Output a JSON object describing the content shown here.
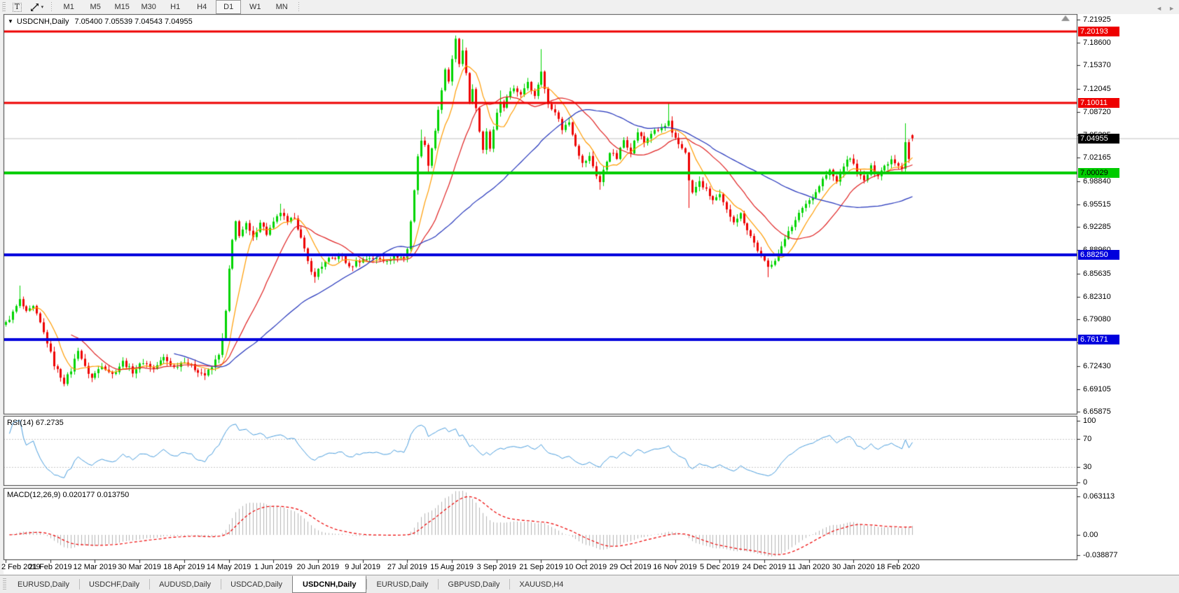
{
  "toolbar": {
    "text_tool_label": "T",
    "dropdown_caret": "▾",
    "timeframes": [
      "M1",
      "M5",
      "M15",
      "M30",
      "H1",
      "H4",
      "D1",
      "W1",
      "MN"
    ],
    "active_timeframe": "D1"
  },
  "chart_window": {
    "menu_arrow": "▼",
    "title": "USDCNH,Daily",
    "ohlc": "7.05400 7.05539 7.04543 7.04955"
  },
  "price_axis": {
    "ticks": [
      "7.21925",
      "7.18600",
      "7.15370",
      "7.12045",
      "7.08720",
      "7.05395",
      "7.02165",
      "6.98840",
      "6.95515",
      "6.92285",
      "6.88960",
      "6.85635",
      "6.82310",
      "6.79080",
      "6.75755",
      "6.72430",
      "6.69105",
      "6.65875"
    ],
    "badges": [
      {
        "label": "7.20193",
        "bg": "#ee0000",
        "fg": "#ffffff"
      },
      {
        "label": "7.10011",
        "bg": "#ee0000",
        "fg": "#ffffff"
      },
      {
        "label": "7.04955",
        "bg": "#000000",
        "fg": "#ffffff"
      },
      {
        "label": "7.00029",
        "bg": "#00cc00",
        "fg": "#000000"
      },
      {
        "label": "6.88250",
        "bg": "#0000dd",
        "fg": "#ffffff"
      },
      {
        "label": "6.76171",
        "bg": "#0000dd",
        "fg": "#ffffff"
      }
    ]
  },
  "rsi_panel": {
    "label": "RSI(14) 67.2735",
    "ticks": [
      "100",
      "70",
      "30",
      "0"
    ],
    "level_lines": [
      70,
      30
    ]
  },
  "macd_panel": {
    "label": "MACD(12,26,9) 0.020177 0.013750",
    "ticks": [
      "0.063113",
      "0.00",
      "-0.038877"
    ]
  },
  "date_axis": {
    "labels": [
      "2 Feb 2019",
      "21 Feb 2019",
      "12 Mar 2019",
      "30 Mar 2019",
      "18 Apr 2019",
      "14 May 2019",
      "1 Jun 2019",
      "20 Jun 2019",
      "9 Jul 2019",
      "27 Jul 2019",
      "15 Aug 2019",
      "3 Sep 2019",
      "21 Sep 2019",
      "10 Oct 2019",
      "29 Oct 2019",
      "16 Nov 2019",
      "5 Dec 2019",
      "24 Dec 2019",
      "11 Jan 2020",
      "30 Jan 2020",
      "18 Feb 2020"
    ]
  },
  "tabs": {
    "items": [
      "EURUSD,Daily",
      "USDCHF,Daily",
      "AUDUSD,Daily",
      "USDCAD,Daily",
      "USDCNH,Daily",
      "EURUSD,Daily",
      "GBPUSD,Daily",
      "XAUUSD,H4"
    ],
    "active_index": 4,
    "scroll_left": "◄",
    "scroll_right": "►"
  },
  "chart_data": {
    "type": "candlestick",
    "symbol": "USDCNH",
    "timeframe": "Daily",
    "last_bar": {
      "open": 7.054,
      "high": 7.05539,
      "low": 7.04543,
      "close": 7.04955
    },
    "price_range": {
      "top": 7.21925,
      "bottom": 6.65875
    },
    "price_axis_ticks": [
      7.21925,
      7.186,
      7.1537,
      7.12045,
      7.0872,
      7.05395,
      7.02165,
      6.9884,
      6.95515,
      6.92285,
      6.8896,
      6.85635,
      6.8231,
      6.7908,
      6.75755,
      6.7243,
      6.69105,
      6.65875
    ],
    "horizontal_levels": [
      {
        "price": 7.20193,
        "color": "#ee0000",
        "width": 3,
        "behind": false
      },
      {
        "price": 7.10011,
        "color": "#ee0000",
        "width": 3,
        "behind": false
      },
      {
        "price": 7.04955,
        "color": "#c0c0c0",
        "width": 1,
        "behind": true
      },
      {
        "price": 7.00029,
        "color": "#00cc00",
        "width": 4,
        "behind": false
      },
      {
        "price": 6.8825,
        "color": "#0000dd",
        "width": 4,
        "behind": false
      },
      {
        "price": 6.76171,
        "color": "#0000dd",
        "width": 4,
        "behind": false
      }
    ],
    "bars_count": 265,
    "bars_per_tick": 13,
    "close_waypoints": [
      [
        0,
        6.785
      ],
      [
        2,
        6.8
      ],
      [
        4,
        6.818
      ],
      [
        6,
        6.8
      ],
      [
        8,
        6.808
      ],
      [
        10,
        6.785
      ],
      [
        12,
        6.758
      ],
      [
        14,
        6.726
      ],
      [
        17,
        6.701
      ],
      [
        19,
        6.718
      ],
      [
        21,
        6.748
      ],
      [
        23,
        6.722
      ],
      [
        25,
        6.707
      ],
      [
        28,
        6.726
      ],
      [
        31,
        6.712
      ],
      [
        34,
        6.73
      ],
      [
        37,
        6.716
      ],
      [
        40,
        6.73
      ],
      [
        43,
        6.72
      ],
      [
        46,
        6.736
      ],
      [
        49,
        6.722
      ],
      [
        52,
        6.732
      ],
      [
        55,
        6.72
      ],
      [
        58,
        6.711
      ],
      [
        60,
        6.722
      ],
      [
        62,
        6.742
      ],
      [
        63,
        6.762
      ],
      [
        64,
        6.802
      ],
      [
        65,
        6.862
      ],
      [
        66,
        6.902
      ],
      [
        67,
        6.93
      ],
      [
        68,
        6.912
      ],
      [
        70,
        6.926
      ],
      [
        72,
        6.906
      ],
      [
        74,
        6.931
      ],
      [
        76,
        6.913
      ],
      [
        78,
        6.928
      ],
      [
        80,
        6.944
      ],
      [
        82,
        6.928
      ],
      [
        84,
        6.938
      ],
      [
        86,
        6.906
      ],
      [
        88,
        6.873
      ],
      [
        90,
        6.85
      ],
      [
        91,
        6.863
      ],
      [
        94,
        6.876
      ],
      [
        98,
        6.882
      ],
      [
        100,
        6.864
      ],
      [
        102,
        6.873
      ],
      [
        106,
        6.879
      ],
      [
        110,
        6.875
      ],
      [
        114,
        6.881
      ],
      [
        116,
        6.878
      ],
      [
        117,
        6.891
      ],
      [
        118,
        6.932
      ],
      [
        119,
        6.976
      ],
      [
        120,
        7.022
      ],
      [
        121,
        7.049
      ],
      [
        122,
        7.038
      ],
      [
        123,
        7.013
      ],
      [
        124,
        7.036
      ],
      [
        125,
        7.061
      ],
      [
        126,
        7.091
      ],
      [
        127,
        7.116
      ],
      [
        128,
        7.146
      ],
      [
        129,
        7.131
      ],
      [
        130,
        7.161
      ],
      [
        131,
        7.189
      ],
      [
        132,
        7.156
      ],
      [
        133,
        7.177
      ],
      [
        134,
        7.141
      ],
      [
        135,
        7.099
      ],
      [
        136,
        7.121
      ],
      [
        137,
        7.094
      ],
      [
        138,
        7.061
      ],
      [
        139,
        7.036
      ],
      [
        140,
        7.059
      ],
      [
        141,
        7.033
      ],
      [
        142,
        7.063
      ],
      [
        143,
        7.086
      ],
      [
        144,
        7.104
      ],
      [
        145,
        7.091
      ],
      [
        146,
        7.112
      ],
      [
        148,
        7.121
      ],
      [
        150,
        7.113
      ],
      [
        152,
        7.131
      ],
      [
        154,
        7.109
      ],
      [
        156,
        7.146
      ],
      [
        157,
        7.119
      ],
      [
        158,
        7.099
      ],
      [
        160,
        7.089
      ],
      [
        162,
        7.063
      ],
      [
        164,
        7.073
      ],
      [
        166,
        7.041
      ],
      [
        168,
        7.013
      ],
      [
        170,
        7.023
      ],
      [
        172,
        6.997
      ],
      [
        173,
        6.987
      ],
      [
        174,
        7.003
      ],
      [
        176,
        7.031
      ],
      [
        178,
        7.021
      ],
      [
        180,
        7.047
      ],
      [
        182,
        7.031
      ],
      [
        184,
        7.059
      ],
      [
        186,
        7.043
      ],
      [
        188,
        7.057
      ],
      [
        190,
        7.061
      ],
      [
        192,
        7.067
      ],
      [
        193,
        7.073
      ],
      [
        194,
        7.055
      ],
      [
        196,
        7.041
      ],
      [
        198,
        7.031
      ],
      [
        199,
        6.988
      ],
      [
        200,
        6.972
      ],
      [
        202,
        6.987
      ],
      [
        204,
        6.975
      ],
      [
        206,
        6.961
      ],
      [
        208,
        6.967
      ],
      [
        210,
        6.946
      ],
      [
        212,
        6.932
      ],
      [
        214,
        6.941
      ],
      [
        216,
        6.92
      ],
      [
        218,
        6.9
      ],
      [
        220,
        6.88
      ],
      [
        222,
        6.865
      ],
      [
        224,
        6.877
      ],
      [
        226,
        6.893
      ],
      [
        228,
        6.919
      ],
      [
        230,
        6.931
      ],
      [
        232,
        6.951
      ],
      [
        234,
        6.961
      ],
      [
        236,
        6.973
      ],
      [
        238,
        6.991
      ],
      [
        240,
        7.003
      ],
      [
        242,
        6.987
      ],
      [
        244,
        7.011
      ],
      [
        246,
        7.022
      ],
      [
        248,
        7.001
      ],
      [
        250,
        6.988
      ],
      [
        252,
        7.008
      ],
      [
        254,
        6.998
      ],
      [
        256,
        7.01
      ],
      [
        258,
        7.02
      ],
      [
        260,
        7.012
      ],
      [
        261,
        7.008
      ],
      [
        262,
        7.044
      ],
      [
        263,
        7.02
      ],
      [
        264,
        7.0496
      ]
    ],
    "spike_highs": [
      [
        4,
        6.839
      ],
      [
        80,
        6.956
      ],
      [
        121,
        7.062
      ],
      [
        131,
        7.1965
      ],
      [
        133,
        7.191
      ],
      [
        144,
        7.118
      ],
      [
        156,
        7.177
      ],
      [
        193,
        7.101
      ],
      [
        262,
        7.071
      ]
    ],
    "spike_lows": [
      [
        17,
        6.695
      ],
      [
        25,
        6.701
      ],
      [
        58,
        6.704
      ],
      [
        90,
        6.843
      ],
      [
        123,
        7.001
      ],
      [
        139,
        7.028
      ],
      [
        173,
        6.976
      ],
      [
        199,
        6.95
      ],
      [
        222,
        6.851
      ]
    ],
    "moving_averages": [
      {
        "period": 8,
        "color": "#ff9c00"
      },
      {
        "period": 20,
        "color": "#e02020"
      },
      {
        "period": 50,
        "color": "#2233bb"
      }
    ],
    "candle_up_color": "#00d400",
    "candle_down_color": "#ee0000",
    "background": "#ffffff",
    "rsi": {
      "period": 14,
      "current": 67.2735,
      "overbought": 70,
      "oversold": 30,
      "color": "#4a9ede",
      "grid_color": "#c8c8c8",
      "range": [
        0,
        100
      ]
    },
    "macd": {
      "fast": 12,
      "slow": 26,
      "signal_period": 9,
      "main_current": 0.020177,
      "signal_current": 0.01375,
      "hist_color": "#b4b4b4",
      "signal_color": "#ee0000",
      "range": [
        -0.038877,
        0.063113
      ]
    }
  }
}
